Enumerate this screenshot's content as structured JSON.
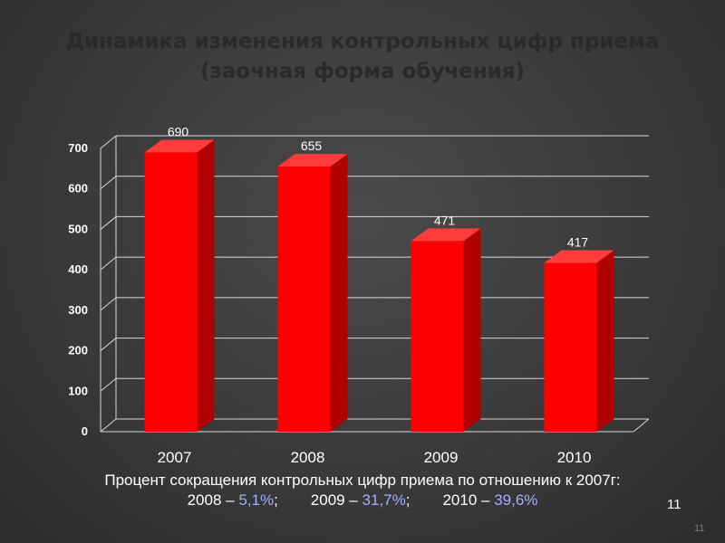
{
  "title": {
    "line1": "Динамика изменения контрольных цифр приема",
    "line2": "(заочная форма обучения)"
  },
  "chart_data": {
    "type": "bar",
    "categories": [
      "2007",
      "2008",
      "2009",
      "2010"
    ],
    "values": [
      690,
      655,
      471,
      417
    ],
    "data_labels": [
      "690",
      "655",
      "471",
      "417"
    ],
    "ylim": [
      0,
      700
    ],
    "yticks": [
      0,
      100,
      200,
      300,
      400,
      500,
      600,
      700
    ],
    "grid": true,
    "bar_color": "#ff0000",
    "style": "3d"
  },
  "note": {
    "line1": "Процент сокращения контрольных цифр приема по отношению к 2007г:",
    "items": [
      {
        "prefix": "2008 – ",
        "value": "5,1%",
        "suffix": ";"
      },
      {
        "prefix": "2009 – ",
        "value": "31,7%",
        "suffix": ";"
      },
      {
        "prefix": "2010 – ",
        "value": "39,6%",
        "suffix": ""
      }
    ]
  },
  "page_number_box": "11",
  "page_number_corner": "11"
}
